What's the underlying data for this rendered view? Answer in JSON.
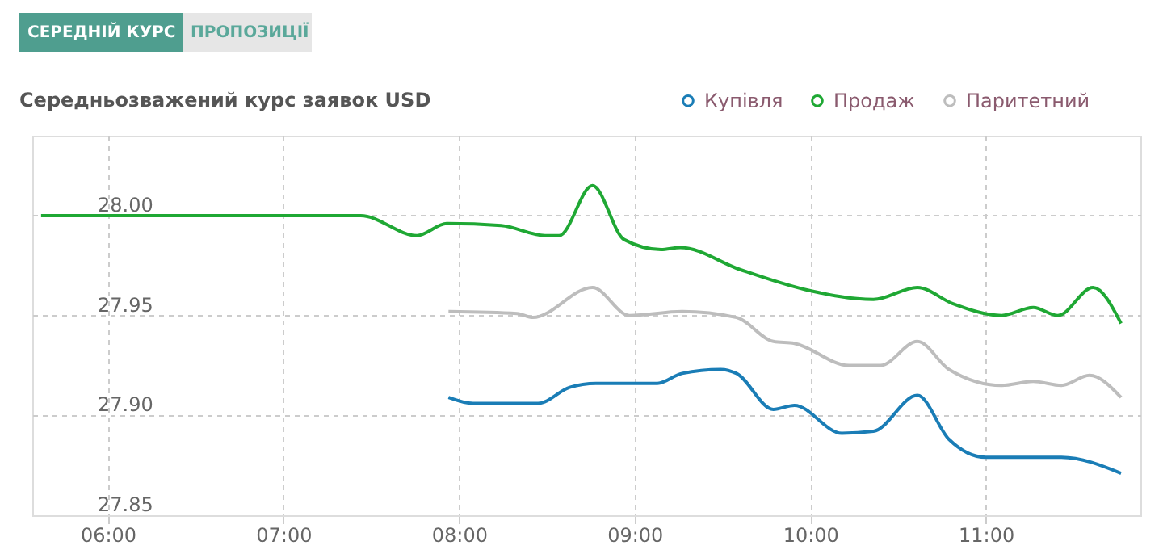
{
  "chart_data": {
    "type": "line",
    "title": "Середньозважений курс заявок USD",
    "annotations": [
      "СЕРЕДНІЙ КУРС",
      "ПРОПОЗИЦІЇ"
    ],
    "xlim": [
      5.57,
      11.88
    ],
    "xticks": [
      {
        "value": 6,
        "label": "06:00"
      },
      {
        "value": 7,
        "label": "07:00"
      },
      {
        "value": 8,
        "label": "08:00"
      },
      {
        "value": 9,
        "label": "09:00"
      },
      {
        "value": 10,
        "label": "10:00"
      },
      {
        "value": 11,
        "label": "11:00"
      }
    ],
    "ylim": [
      27.85,
      28.04
    ],
    "yticks": [
      {
        "value": 27.85,
        "label": "27.85"
      },
      {
        "value": 27.9,
        "label": "27.90"
      },
      {
        "value": 27.95,
        "label": "27.95"
      },
      {
        "value": 28.0,
        "label": "28.00"
      }
    ],
    "grid": true,
    "legend": "top right",
    "marker": "none",
    "line_style": "solid",
    "series": [
      {
        "name": "Купівля",
        "color": "#1a7db6",
        "x": [
          7.94,
          8.08,
          8.45,
          8.63,
          8.78,
          9.13,
          9.27,
          9.49,
          9.58,
          9.79,
          9.91,
          10.18,
          10.36,
          10.61,
          10.79,
          11.0,
          11.43,
          11.77
        ],
        "values": [
          27.909,
          27.906,
          27.906,
          27.914,
          27.916,
          27.916,
          27.921,
          27.923,
          27.921,
          27.903,
          27.905,
          27.891,
          27.892,
          27.91,
          27.888,
          27.879,
          27.879,
          27.871
        ]
      },
      {
        "name": "Продаж",
        "color": "#1fa834",
        "x": [
          5.62,
          7.44,
          7.76,
          7.93,
          8.24,
          8.49,
          8.57,
          8.76,
          8.94,
          9.15,
          9.26,
          9.6,
          9.97,
          10.36,
          10.61,
          10.81,
          11.09,
          11.27,
          11.41,
          11.61,
          11.77
        ],
        "values": [
          28.0,
          28.0,
          27.99,
          27.996,
          27.995,
          27.99,
          27.99,
          28.015,
          27.988,
          27.983,
          27.984,
          27.973,
          27.963,
          27.958,
          27.964,
          27.956,
          27.95,
          27.954,
          27.95,
          27.964,
          27.946
        ]
      },
      {
        "name": "Паритетний",
        "color": "#bdbdbd",
        "x": [
          7.94,
          8.33,
          8.42,
          8.76,
          8.97,
          9.27,
          9.58,
          9.79,
          9.91,
          10.22,
          10.4,
          10.61,
          10.79,
          11.09,
          11.27,
          11.43,
          11.59,
          11.77
        ],
        "values": [
          27.952,
          27.951,
          27.949,
          27.964,
          27.95,
          27.952,
          27.949,
          27.937,
          27.936,
          27.925,
          27.925,
          27.937,
          27.923,
          27.915,
          27.917,
          27.915,
          27.92,
          27.909
        ]
      }
    ]
  }
}
